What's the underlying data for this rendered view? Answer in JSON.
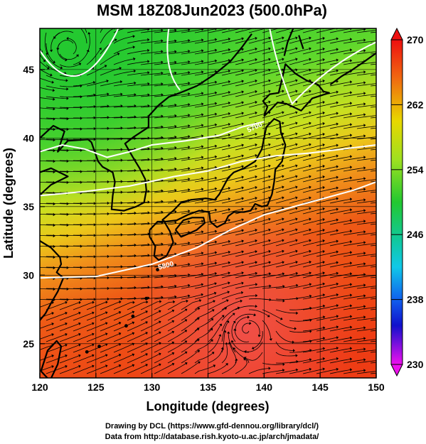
{
  "title": "MSM 18Z08Jun2023 (500.0hPa)",
  "x_axis": {
    "label": "Longitude (degrees)",
    "ticks": [
      "120",
      "125",
      "130",
      "135",
      "140",
      "145",
      "150"
    ]
  },
  "y_axis": {
    "label": "Latitude  (degrees)",
    "ticks": [
      "25",
      "30",
      "35",
      "40",
      "45"
    ]
  },
  "colorbar": {
    "labels": [
      "270",
      "262",
      "254",
      "246",
      "238",
      "230"
    ]
  },
  "contour_labels": [
    "5700",
    "5800"
  ],
  "credits": {
    "line1": "Drawing by DCL (https://www.gfd-dennou.org/library/dcl/)",
    "line2": "Data from http://database.rish.kyoto-u.ac.jp/arch/jmadata/"
  },
  "colors": {
    "cold": "#33cc33",
    "mid": "#e8d800",
    "warm": "#ee3010",
    "contour": "#ffffff",
    "coast": "#000000"
  },
  "chart_data": {
    "type": "heatmap",
    "variable_range": [
      230,
      270
    ],
    "xlim": [
      120,
      150
    ],
    "ylim": [
      22.5,
      48
    ],
    "grid": true,
    "contours": [
      {
        "label": "5700",
        "points": [
          [
            120,
            39
          ],
          [
            122,
            39.5
          ],
          [
            124,
            39.2
          ],
          [
            126,
            38.6
          ],
          [
            128,
            39
          ],
          [
            130,
            39.5
          ],
          [
            133,
            39.8
          ],
          [
            136,
            40.2
          ],
          [
            138,
            40.8
          ],
          [
            140,
            41.2
          ]
        ]
      },
      {
        "label": "5800",
        "points": [
          [
            120,
            29.8
          ],
          [
            125,
            29.9
          ],
          [
            130,
            30.8
          ],
          [
            134,
            32
          ],
          [
            137,
            33.3
          ],
          [
            140,
            34.4
          ],
          [
            144,
            35.3
          ],
          [
            148,
            36.2
          ],
          [
            150,
            36.8
          ]
        ]
      },
      {
        "label": "",
        "points": [
          [
            120,
            35.8
          ],
          [
            124,
            36.1
          ],
          [
            128,
            36.5
          ],
          [
            132,
            37.2
          ],
          [
            135,
            37.6
          ],
          [
            138,
            38.3
          ],
          [
            141,
            38.7
          ],
          [
            144,
            38.9
          ],
          [
            150,
            39.5
          ]
        ]
      }
    ]
  }
}
